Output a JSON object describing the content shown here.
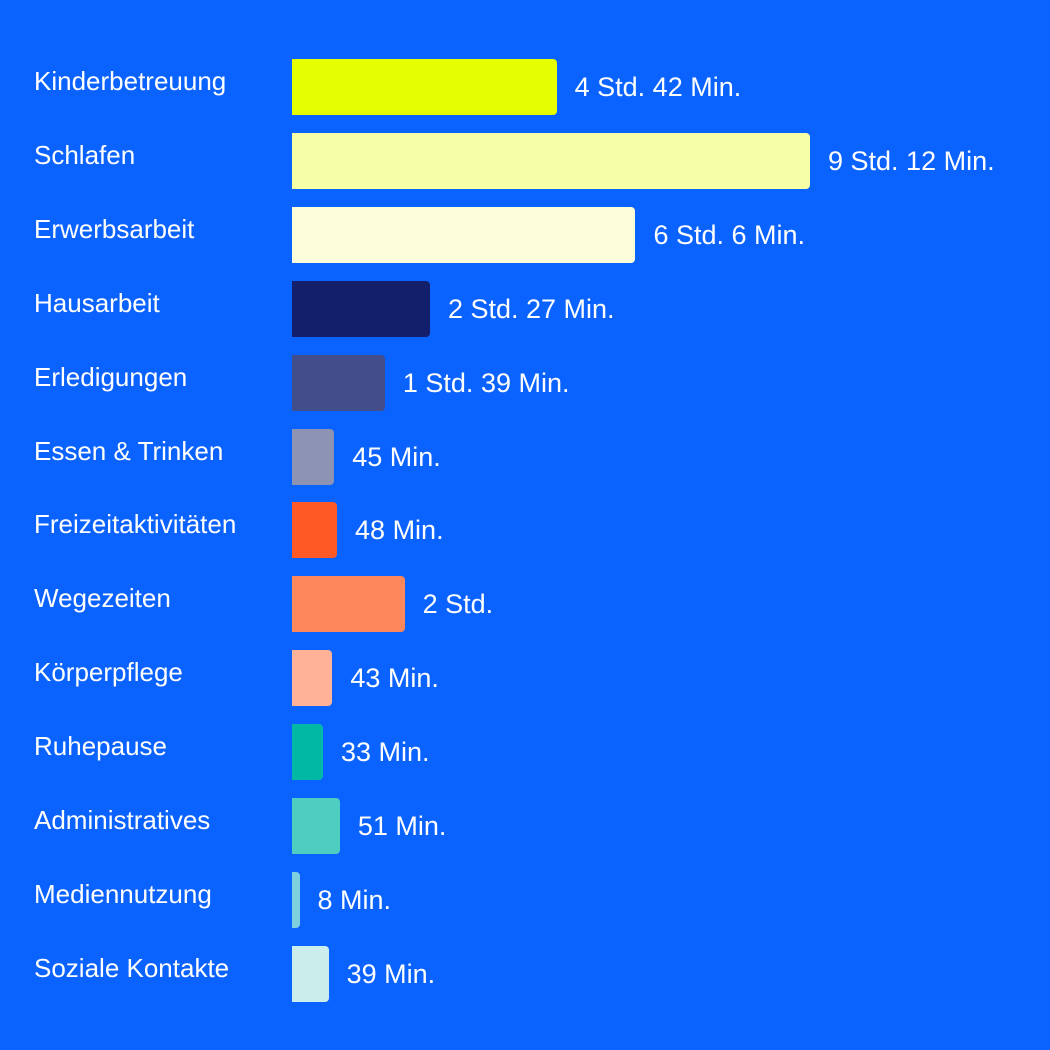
{
  "chart_data": {
    "type": "bar",
    "orientation": "horizontal",
    "unit": "minutes",
    "categories": [
      "Kinderbetreuung",
      "Schlafen",
      "Erwerbsarbeit",
      "Hausarbeit",
      "Erledigungen",
      "Essen & Trinken",
      "Freizeitaktivitäten",
      "Wegezeiten",
      "Körperpflege",
      "Ruhepause",
      "Administratives",
      "Mediennutzung",
      "Soziale Kontakte"
    ],
    "values": [
      282,
      552,
      366,
      147,
      99,
      45,
      48,
      120,
      43,
      33,
      51,
      8,
      39
    ],
    "value_labels": [
      "4 Std. 42 Min.",
      "9 Std. 12 Min.",
      "6 Std. 6 Min.",
      "2 Std. 27 Min.",
      "1 Std. 39 Min.",
      "45 Min.",
      "48 Min.",
      "2 Std.",
      "43 Min.",
      "33 Min.",
      "51 Min.",
      "8 Min.",
      "39 Min."
    ],
    "colors": [
      "#e6ff00",
      "#f4ffa6",
      "#fbfed8",
      "#141f6b",
      "#434d8c",
      "#8c93b3",
      "#ff5a26",
      "#ff875c",
      "#ffb297",
      "#00b8a3",
      "#4ecec0",
      "#7fd0df",
      "#cbeeed"
    ],
    "xlim": [
      0,
      552
    ],
    "grid": false,
    "legend": "none"
  },
  "background_color": "#0a62ff"
}
